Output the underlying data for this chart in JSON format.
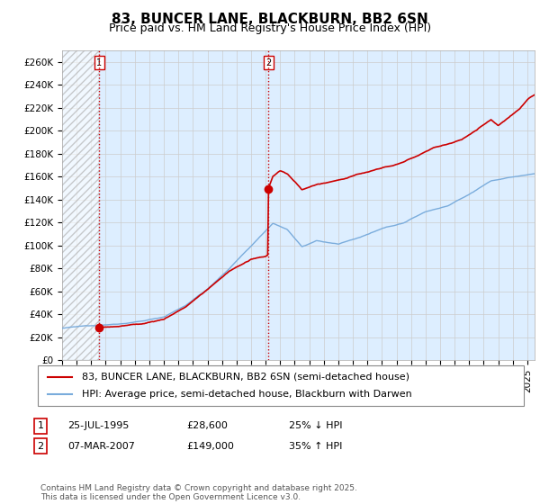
{
  "title": "83, BUNCER LANE, BLACKBURN, BB2 6SN",
  "subtitle": "Price paid vs. HM Land Registry's House Price Index (HPI)",
  "ylim": [
    0,
    270000
  ],
  "yticks": [
    0,
    20000,
    40000,
    60000,
    80000,
    100000,
    120000,
    140000,
    160000,
    180000,
    200000,
    220000,
    240000,
    260000
  ],
  "ytick_labels": [
    "£0",
    "£20K",
    "£40K",
    "£60K",
    "£80K",
    "£100K",
    "£120K",
    "£140K",
    "£160K",
    "£180K",
    "£200K",
    "£220K",
    "£240K",
    "£260K"
  ],
  "sale1_date": 1995.56,
  "sale1_price": 28600,
  "sale2_date": 2007.18,
  "sale2_price": 149000,
  "property_line_color": "#cc0000",
  "hpi_line_color": "#7aacdc",
  "vline_color": "#cc0000",
  "grid_color": "#cccccc",
  "plot_bg_color": "#ddeeff",
  "background_color": "#ffffff",
  "legend_label_property": "83, BUNCER LANE, BLACKBURN, BB2 6SN (semi-detached house)",
  "legend_label_hpi": "HPI: Average price, semi-detached house, Blackburn with Darwen",
  "footer": "Contains HM Land Registry data © Crown copyright and database right 2025.\nThis data is licensed under the Open Government Licence v3.0.",
  "xmin": 1993,
  "xmax": 2025.5,
  "title_fontsize": 11,
  "subtitle_fontsize": 9,
  "tick_fontsize": 7.5,
  "legend_fontsize": 8
}
